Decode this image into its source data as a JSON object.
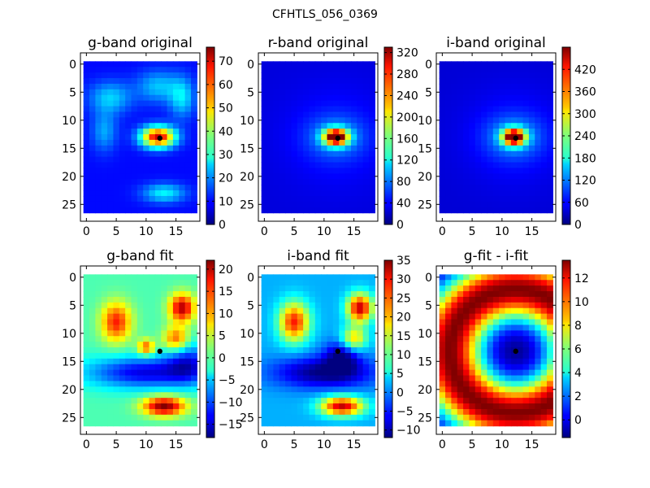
{
  "figure": {
    "title": "CFHTLS_056_0369"
  },
  "chart_data": [
    {
      "type": "heatmap",
      "title": "g-band original",
      "colormap": "jet",
      "x_ticks": [
        "0",
        "5",
        "10",
        "15"
      ],
      "y_ticks": [
        "0",
        "5",
        "10",
        "15",
        "20",
        "25"
      ],
      "xlim": [
        -1,
        19
      ],
      "ylim": [
        28,
        -2
      ],
      "colorbar": {
        "min": 0,
        "max": 76,
        "ticks": [
          "0",
          "10",
          "20",
          "30",
          "40",
          "50",
          "60",
          "70"
        ]
      },
      "background": 10,
      "blobs": [
        {
          "x": 12,
          "y": 13,
          "sx": 2.0,
          "sy": 1.3,
          "a": 60
        },
        {
          "x": 4,
          "y": 6,
          "sx": 2.5,
          "sy": 2.0,
          "a": 15
        },
        {
          "x": 12,
          "y": 4,
          "sx": 2.5,
          "sy": 2.0,
          "a": 14
        },
        {
          "x": 16,
          "y": 6,
          "sx": 1.5,
          "sy": 2.5,
          "a": 16
        },
        {
          "x": 3,
          "y": 12,
          "sx": 1.5,
          "sy": 2.5,
          "a": 12
        },
        {
          "x": 13,
          "y": 23,
          "sx": 2.5,
          "sy": 1.2,
          "a": 18
        }
      ],
      "marker": {
        "x": 12.3,
        "y": 13.2
      }
    },
    {
      "type": "heatmap",
      "title": "r-band original",
      "colormap": "jet",
      "x_ticks": [
        "0",
        "5",
        "10",
        "15"
      ],
      "y_ticks": [
        "0",
        "5",
        "10",
        "15",
        "20",
        "25"
      ],
      "xlim": [
        -1,
        19
      ],
      "ylim": [
        28,
        -2
      ],
      "colorbar": {
        "min": 0,
        "max": 330,
        "ticks": [
          "0",
          "40",
          "80",
          "120",
          "160",
          "200",
          "240",
          "280",
          "320"
        ]
      },
      "background": 30,
      "blobs": [
        {
          "x": 12,
          "y": 13,
          "sx": 1.4,
          "sy": 1.0,
          "a": 300
        },
        {
          "x": 12,
          "y": 13,
          "sx": 3.2,
          "sy": 2.5,
          "a": 50
        },
        {
          "x": 12,
          "y": 13,
          "sx": 6,
          "sy": 6,
          "a": 20
        }
      ],
      "marker": {
        "x": 12.3,
        "y": 13.2
      }
    },
    {
      "type": "heatmap",
      "title": "i-band original",
      "colormap": "jet",
      "x_ticks": [
        "0",
        "5",
        "10",
        "15"
      ],
      "y_ticks": [
        "0",
        "5",
        "10",
        "15",
        "20",
        "25"
      ],
      "xlim": [
        -1,
        19
      ],
      "ylim": [
        28,
        -2
      ],
      "colorbar": {
        "min": 0,
        "max": 480,
        "ticks": [
          "0",
          "60",
          "120",
          "180",
          "240",
          "300",
          "360",
          "420"
        ]
      },
      "background": 40,
      "blobs": [
        {
          "x": 12,
          "y": 13,
          "sx": 1.3,
          "sy": 1.0,
          "a": 440
        },
        {
          "x": 12,
          "y": 13,
          "sx": 3.2,
          "sy": 2.6,
          "a": 80
        },
        {
          "x": 12,
          "y": 13,
          "sx": 6,
          "sy": 6,
          "a": 30
        }
      ],
      "marker": {
        "x": 12.3,
        "y": 13.2
      }
    },
    {
      "type": "heatmap",
      "title": "g-band fit",
      "colormap": "jet",
      "x_ticks": [
        "0",
        "5",
        "10",
        "15"
      ],
      "y_ticks": [
        "0",
        "5",
        "10",
        "15",
        "20",
        "25"
      ],
      "xlim": [
        -1,
        19
      ],
      "ylim": [
        28,
        -2
      ],
      "colorbar": {
        "min": -18,
        "max": 22,
        "ticks": [
          "−15",
          "−10",
          "−5",
          "0",
          "5",
          "10",
          "15",
          "20"
        ]
      },
      "background": 0,
      "blobs": [
        {
          "x": 5,
          "y": 8,
          "sx": 1.8,
          "sy": 2.5,
          "a": 16
        },
        {
          "x": 16,
          "y": 5.5,
          "sx": 1.5,
          "sy": 1.8,
          "a": 20
        },
        {
          "x": 15,
          "y": 11,
          "sx": 1.5,
          "sy": 1.5,
          "a": 14
        },
        {
          "x": 10,
          "y": 12.5,
          "sx": 1.0,
          "sy": 1.0,
          "a": 14
        },
        {
          "x": 13,
          "y": 23,
          "sx": 2.5,
          "sy": 1.2,
          "a": 22
        },
        {
          "x": 10,
          "y": 17,
          "sx": 7,
          "sy": 2.0,
          "a": -14
        },
        {
          "x": 17,
          "y": 15,
          "sx": 2.5,
          "sy": 2.5,
          "a": -10
        }
      ],
      "marker": {
        "x": 12.3,
        "y": 13.2
      }
    },
    {
      "type": "heatmap",
      "title": "i-band fit",
      "colormap": "jet",
      "x_ticks": [
        "0",
        "5",
        "10",
        "15"
      ],
      "y_ticks": [
        "0",
        "5",
        "10",
        "15",
        "20",
        "25"
      ],
      "xlim": [
        -1,
        19
      ],
      "ylim": [
        28,
        -2
      ],
      "colorbar": {
        "min": -12,
        "max": 35,
        "ticks": [
          "−10",
          "−5",
          "0",
          "5",
          "10",
          "15",
          "20",
          "25",
          "30",
          "35"
        ]
      },
      "background": 2,
      "blobs": [
        {
          "x": 5,
          "y": 8,
          "sx": 1.8,
          "sy": 2.5,
          "a": 26
        },
        {
          "x": 16,
          "y": 5.5,
          "sx": 1.5,
          "sy": 1.8,
          "a": 30
        },
        {
          "x": 15,
          "y": 11,
          "sx": 1.5,
          "sy": 1.5,
          "a": 18
        },
        {
          "x": 13,
          "y": 23,
          "sx": 2.5,
          "sy": 1.2,
          "a": 30
        },
        {
          "x": 10,
          "y": 17,
          "sx": 6,
          "sy": 2.0,
          "a": -14
        },
        {
          "x": 13,
          "y": 14,
          "sx": 2.0,
          "sy": 2.0,
          "a": -12
        }
      ],
      "marker": {
        "x": 12.3,
        "y": 13.2
      }
    },
    {
      "type": "heatmap",
      "title": "g-fit - i-fit",
      "colormap": "jet",
      "x_ticks": [
        "0",
        "5",
        "10",
        "15"
      ],
      "y_ticks": [
        "0",
        "5",
        "10",
        "15",
        "20",
        "25"
      ],
      "xlim": [
        -1,
        19
      ],
      "ylim": [
        28,
        -2
      ],
      "colorbar": {
        "min": -1.5,
        "max": 13.5,
        "ticks": [
          "0",
          "2",
          "4",
          "6",
          "8",
          "10",
          "12"
        ]
      },
      "ring": {
        "x": 12.3,
        "y": 13.2,
        "r": 11,
        "w": 5.5,
        "a": 15,
        "base": -1.5
      },
      "marker": {
        "x": 12.3,
        "y": 13.2
      }
    }
  ]
}
